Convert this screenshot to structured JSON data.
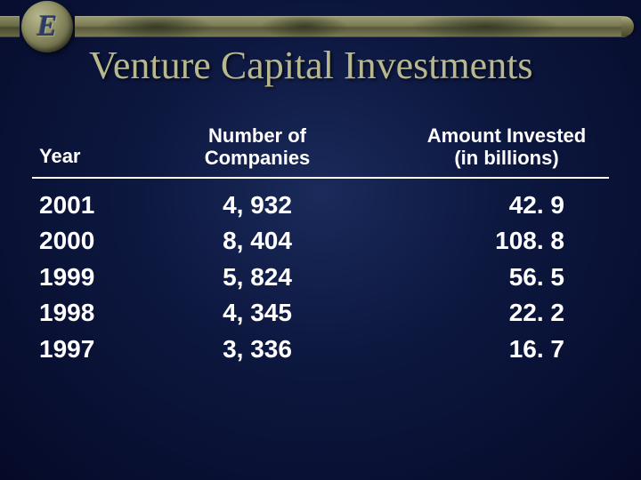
{
  "slide": {
    "title": "Venture Capital Investments",
    "emblem_letter": "E",
    "background_colors": {
      "center": "#1a2a5a",
      "mid": "#0d1840",
      "edge": "#050a28"
    },
    "accent_bar_color": "#7a7a55",
    "text_color": "#ffffff",
    "title_color": "#b8b890",
    "title_fontsize_pt": 33,
    "title_font_family": "Times New Roman",
    "body_fontsize_pt": 21,
    "header_fontsize_pt": 17
  },
  "table": {
    "type": "table",
    "columns": [
      {
        "key": "year",
        "label": "Year",
        "align": "left"
      },
      {
        "key": "comp",
        "label": "Number of\nCompanies",
        "align": "center"
      },
      {
        "key": "amount",
        "label": "Amount Invested\n(in billions)",
        "align": "center"
      }
    ],
    "rows": [
      {
        "year": "2001",
        "comp": "4, 932",
        "amount": "42. 9"
      },
      {
        "year": "2000",
        "comp": "8, 404",
        "amount": "108. 8"
      },
      {
        "year": "1999",
        "comp": "5, 824",
        "amount": "56. 5"
      },
      {
        "year": "1998",
        "comp": "4, 345",
        "amount": "22. 2"
      },
      {
        "year": "1997",
        "comp": "3, 336",
        "amount": "16. 7"
      }
    ],
    "rule_color": "#ffffff"
  }
}
